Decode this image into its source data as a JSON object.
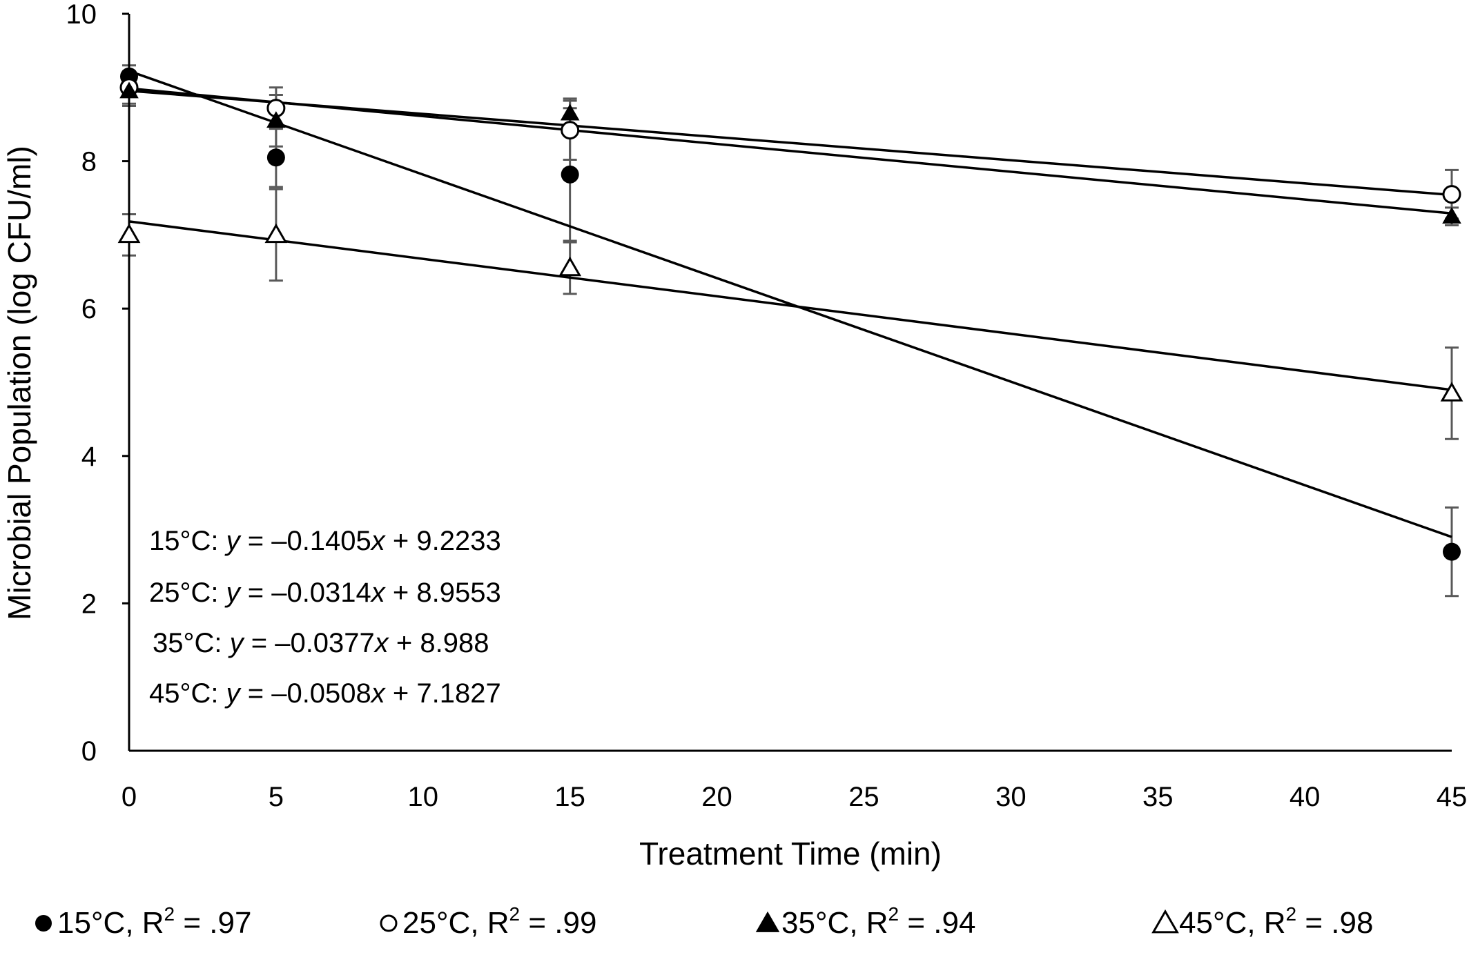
{
  "chart_data": {
    "type": "scatter",
    "xlabel": "Treatment Time (min)",
    "ylabel": "Microbial Population (log CFU/ml)",
    "xlim": [
      0,
      45
    ],
    "ylim": [
      0,
      10
    ],
    "xticks": [
      "0",
      "5",
      "10",
      "15",
      "20",
      "25",
      "30",
      "35",
      "40",
      "45"
    ],
    "yticks": [
      "0",
      "2",
      "4",
      "6",
      "8",
      "10"
    ],
    "grid": false,
    "legend_position": "bottom",
    "series": [
      {
        "name": "15°C, R",
        "r2_label": "= .97",
        "marker": "filled-circle",
        "x": [
          0,
          5,
          15,
          45
        ],
        "y": [
          9.15,
          8.05,
          7.82,
          2.7
        ],
        "err": [
          0.15,
          0.4,
          0.9,
          0.6
        ],
        "trend": {
          "slope": -0.1405,
          "intercept": 9.2233
        },
        "equation": {
          "temp": "15°C:",
          "lhs": "y",
          "rhs_a": "= –0.1405",
          "var": "x",
          "rhs_b": "+ 9.2233"
        }
      },
      {
        "name": "25°C, R",
        "r2_label": "= .99",
        "marker": "open-circle",
        "x": [
          0,
          5,
          15,
          45
        ],
        "y": [
          9.0,
          8.72,
          8.42,
          7.55
        ],
        "err": [
          0.22,
          0.28,
          0.4,
          0.33
        ],
        "trend": {
          "slope": -0.0314,
          "intercept": 8.9553
        },
        "equation": {
          "temp": "25°C:",
          "lhs": "y",
          "rhs_a": "= –0.0314",
          "var": "x",
          "rhs_b": "+ 8.9553"
        }
      },
      {
        "name": "35°C, R",
        "r2_label": "= .94",
        "marker": "filled-triangle",
        "x": [
          0,
          5,
          15,
          45
        ],
        "y": [
          8.95,
          8.55,
          8.65,
          7.25
        ],
        "err": [
          0.2,
          0.35,
          0.2,
          0.12
        ],
        "trend": {
          "slope": -0.0377,
          "intercept": 8.988
        },
        "equation": {
          "temp": "35°C:",
          "lhs": "y",
          "rhs_a": "= –0.0377",
          "var": "x",
          "rhs_b": "+ 8.988"
        }
      },
      {
        "name": "45°C, R",
        "r2_label": "= .98",
        "marker": "open-triangle",
        "x": [
          0,
          5,
          15,
          45
        ],
        "y": [
          7.0,
          7.0,
          6.55,
          4.85
        ],
        "err": [
          0.28,
          0.62,
          0.35,
          0.62
        ],
        "trend": {
          "slope": -0.0508,
          "intercept": 7.1827
        },
        "equation": {
          "temp": "45°C:",
          "lhs": "y",
          "rhs_a": "= –0.0508",
          "var": "x",
          "rhs_b": "+ 7.1827"
        }
      }
    ]
  },
  "colors": {
    "axis": "#000000",
    "error_bar": "#595959",
    "trend_line": "#000000",
    "marker": "#000000",
    "background": "#ffffff"
  }
}
